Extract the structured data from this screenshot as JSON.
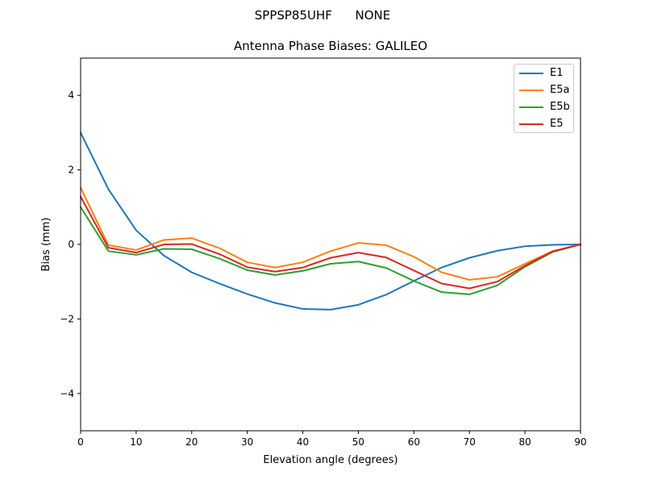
{
  "chart_data": {
    "type": "line",
    "suptitle": "SPPSP85UHF      NONE",
    "title": "Antenna Phase Biases: GALILEO",
    "xlabel": "Elevation angle (degrees)",
    "ylabel": "Bias (mm)",
    "xlim": [
      0,
      90
    ],
    "ylim": [
      -5,
      5
    ],
    "xticks": [
      0,
      10,
      20,
      30,
      40,
      50,
      60,
      70,
      80,
      90
    ],
    "yticks": [
      -4,
      -2,
      0,
      2,
      4
    ],
    "ytick_labels": [
      "−4",
      "−2",
      "0",
      "2",
      "4"
    ],
    "grid": false,
    "legend_position": "top-right",
    "x": [
      0,
      5,
      10,
      15,
      20,
      25,
      30,
      35,
      40,
      45,
      50,
      55,
      60,
      65,
      70,
      75,
      80,
      85,
      90
    ],
    "series": [
      {
        "name": "E1",
        "color": "#1f77b4",
        "values": [
          3.0,
          1.48,
          0.38,
          -0.3,
          -0.75,
          -1.05,
          -1.33,
          -1.57,
          -1.73,
          -1.75,
          -1.62,
          -1.35,
          -0.98,
          -0.62,
          -0.36,
          -0.17,
          -0.05,
          -0.01,
          0.0
        ]
      },
      {
        "name": "E5a",
        "color": "#ff7f0e",
        "values": [
          1.52,
          -0.02,
          -0.15,
          0.12,
          0.17,
          -0.1,
          -0.48,
          -0.62,
          -0.48,
          -0.18,
          0.04,
          -0.02,
          -0.33,
          -0.75,
          -0.95,
          -0.87,
          -0.52,
          -0.18,
          0.0
        ]
      },
      {
        "name": "E5b",
        "color": "#2ca02c",
        "values": [
          1.0,
          -0.18,
          -0.28,
          -0.12,
          -0.13,
          -0.38,
          -0.69,
          -0.82,
          -0.71,
          -0.52,
          -0.46,
          -0.63,
          -0.98,
          -1.28,
          -1.34,
          -1.1,
          -0.6,
          -0.2,
          0.0
        ]
      },
      {
        "name": "E5",
        "color": "#d62728",
        "values": [
          1.28,
          -0.09,
          -0.22,
          0.0,
          0.01,
          -0.26,
          -0.61,
          -0.73,
          -0.62,
          -0.36,
          -0.22,
          -0.35,
          -0.7,
          -1.05,
          -1.18,
          -1.0,
          -0.57,
          -0.19,
          0.0
        ]
      }
    ]
  }
}
